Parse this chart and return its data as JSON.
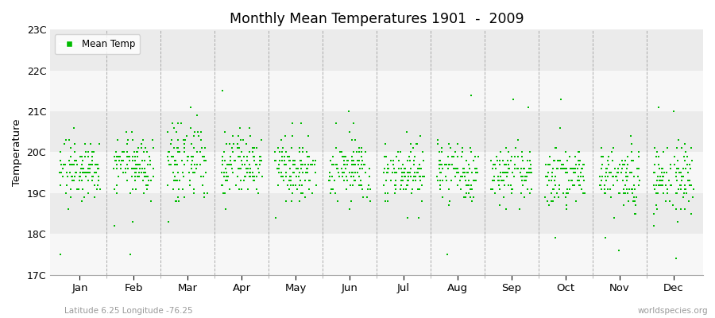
{
  "title": "Monthly Mean Temperatures 1901  -  2009",
  "ylabel": "Temperature",
  "subtitle": "Latitude 6.25 Longitude -76.25",
  "watermark": "worldspecies.org",
  "legend_label": "Mean Temp",
  "months": [
    "Jan",
    "Feb",
    "Mar",
    "Apr",
    "May",
    "Jun",
    "Jul",
    "Aug",
    "Sep",
    "Oct",
    "Nov",
    "Dec"
  ],
  "ylim": [
    17,
    23
  ],
  "yticks": [
    17,
    18,
    19,
    20,
    21,
    22,
    23
  ],
  "ytick_labels": [
    "17C",
    "18C",
    "19C",
    "20C",
    "21C",
    "22C",
    "23C"
  ],
  "dot_color": "#00bb00",
  "dot_size": 3,
  "figure_bg": "#ffffff",
  "plot_bg": "#ffffff",
  "band_light": "#ebebeb",
  "band_white": "#f7f7f7",
  "vline_color": "#999999",
  "n_years": 109,
  "month_means": [
    19.6,
    19.65,
    19.75,
    19.65,
    19.6,
    19.55,
    19.5,
    19.55,
    19.5,
    19.4,
    19.38,
    19.4
  ],
  "month_stds": [
    0.38,
    0.42,
    0.44,
    0.4,
    0.38,
    0.36,
    0.37,
    0.38,
    0.35,
    0.37,
    0.38,
    0.4
  ],
  "seed": 42
}
